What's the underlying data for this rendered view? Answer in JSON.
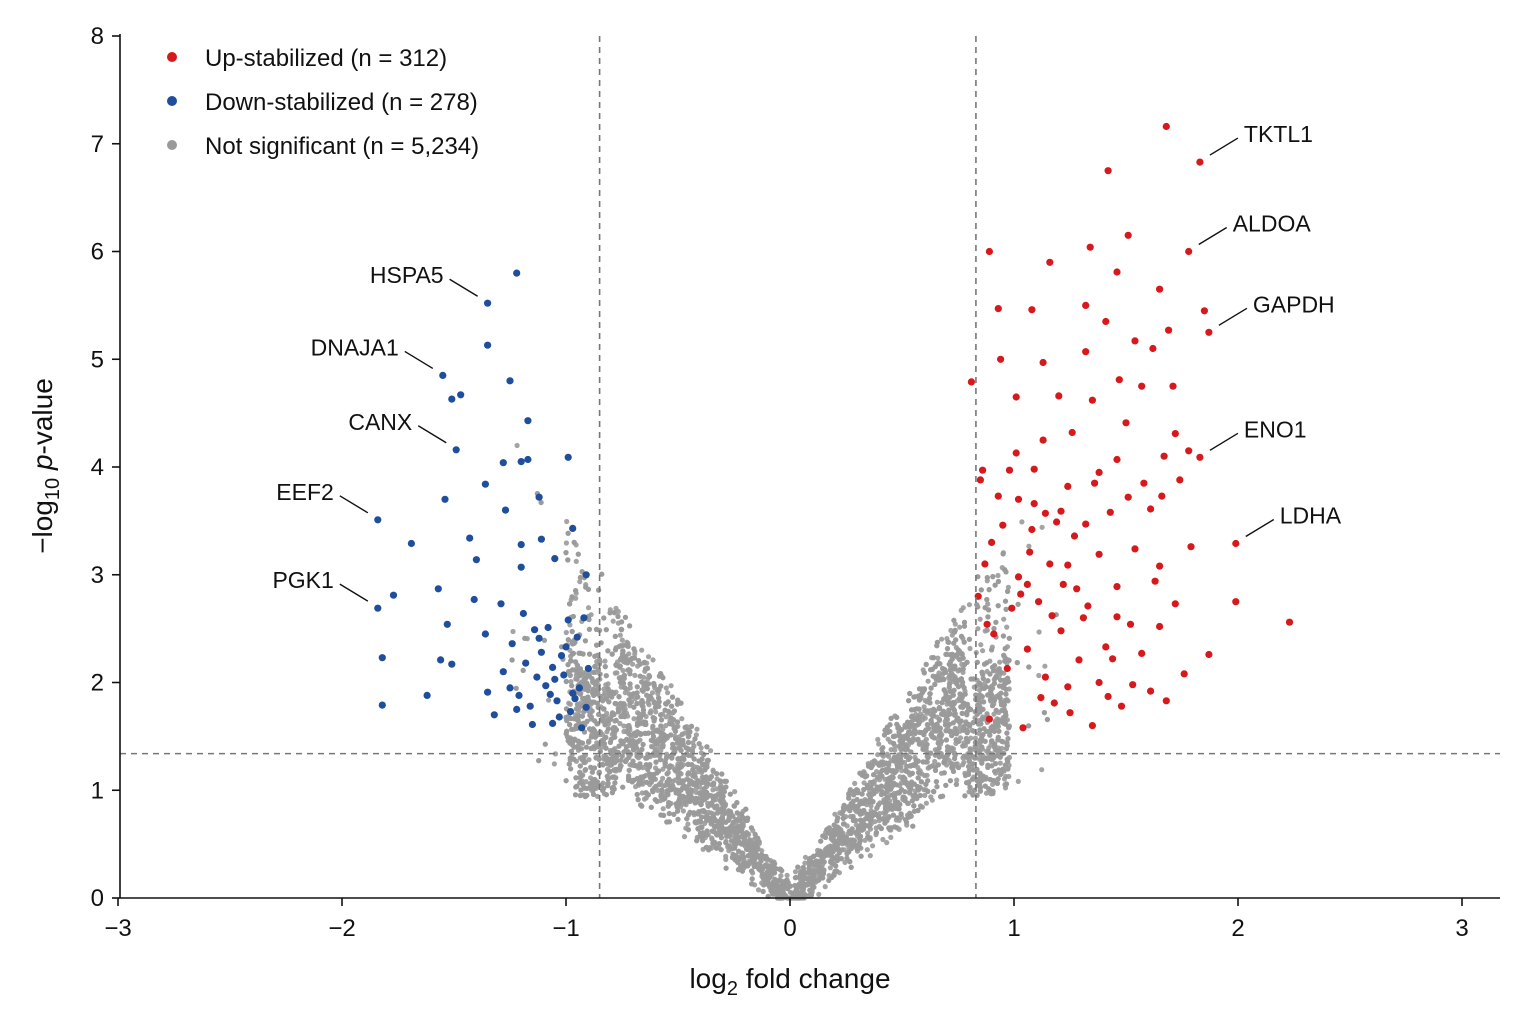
{
  "chart_data": {
    "type": "scatter",
    "title": "",
    "xlabel": {
      "prefix": "log",
      "sub": "2",
      "suffix": " fold change"
    },
    "ylabel": {
      "prefix": "−log",
      "sub": "10",
      "italic": "p",
      "suffix": "-value"
    },
    "xlim": [
      -3,
      3.1
    ],
    "ylim": [
      0,
      8
    ],
    "x_ticks": [
      -3,
      -2,
      -1,
      0,
      1,
      2,
      3
    ],
    "x_tick_labels": [
      "−3",
      "−2",
      "−1",
      "0",
      "1",
      "2",
      "3"
    ],
    "y_ticks": [
      0,
      1,
      2,
      3,
      4,
      5,
      6,
      7,
      8
    ],
    "y_tick_labels": [
      "0",
      "1",
      "2",
      "3",
      "4",
      "5",
      "6",
      "7",
      "8"
    ],
    "thresholds": {
      "x_left": -0.85,
      "x_right": 0.83,
      "y": 1.34
    },
    "grid": false,
    "legend_position": "top-left",
    "colors": {
      "up": "#d7191c",
      "down": "#1f4e9c",
      "ns": "#9a9a9a",
      "threshold_line": "#777777"
    },
    "legend": [
      {
        "key": "up",
        "label": "Up-stabilized (n = 312)"
      },
      {
        "key": "down",
        "label": "Down-stabilized (n = 278)"
      },
      {
        "key": "ns",
        "label": "Not significant (n = 5,234)"
      }
    ],
    "series": [
      {
        "key": "up",
        "name": "Up-stabilized (n = 312)",
        "points": [
          [
            1.68,
            7.16
          ],
          [
            1.83,
            6.83
          ],
          [
            1.42,
            6.75
          ],
          [
            1.78,
            6.0
          ],
          [
            1.51,
            6.15
          ],
          [
            1.34,
            6.04
          ],
          [
            0.89,
            6.0
          ],
          [
            1.16,
            5.9
          ],
          [
            1.46,
            5.81
          ],
          [
            1.65,
            5.65
          ],
          [
            0.93,
            5.47
          ],
          [
            1.08,
            5.46
          ],
          [
            1.32,
            5.5
          ],
          [
            1.85,
            5.45
          ],
          [
            1.41,
            5.35
          ],
          [
            1.69,
            5.27
          ],
          [
            1.87,
            5.25
          ],
          [
            1.54,
            5.17
          ],
          [
            1.62,
            5.1
          ],
          [
            1.32,
            5.07
          ],
          [
            1.13,
            4.97
          ],
          [
            0.94,
            5.0
          ],
          [
            1.47,
            4.81
          ],
          [
            1.57,
            4.75
          ],
          [
            1.71,
            4.75
          ],
          [
            0.81,
            4.79
          ],
          [
            1.01,
            4.65
          ],
          [
            1.2,
            4.66
          ],
          [
            1.35,
            4.62
          ],
          [
            1.5,
            4.41
          ],
          [
            1.72,
            4.31
          ],
          [
            1.26,
            4.32
          ],
          [
            1.13,
            4.25
          ],
          [
            1.01,
            4.13
          ],
          [
            1.78,
            4.15
          ],
          [
            1.83,
            4.09
          ],
          [
            1.67,
            4.1
          ],
          [
            1.46,
            4.07
          ],
          [
            0.86,
            3.97
          ],
          [
            1.09,
            3.98
          ],
          [
            1.38,
            3.95
          ],
          [
            1.58,
            3.85
          ],
          [
            1.74,
            3.88
          ],
          [
            1.24,
            3.82
          ],
          [
            0.93,
            3.73
          ],
          [
            1.02,
            3.7
          ],
          [
            1.51,
            3.72
          ],
          [
            1.66,
            3.73
          ],
          [
            1.61,
            3.61
          ],
          [
            1.43,
            3.58
          ],
          [
            1.19,
            3.49
          ],
          [
            1.32,
            3.47
          ],
          [
            0.95,
            3.46
          ],
          [
            1.08,
            3.42
          ],
          [
            1.99,
            3.29
          ],
          [
            1.79,
            3.26
          ],
          [
            1.54,
            3.24
          ],
          [
            1.38,
            3.19
          ],
          [
            1.65,
            3.08
          ],
          [
            1.24,
            3.09
          ],
          [
            1.16,
            3.1
          ],
          [
            0.87,
            3.1
          ],
          [
            1.28,
            2.87
          ],
          [
            1.63,
            2.94
          ],
          [
            1.46,
            2.89
          ],
          [
            1.03,
            2.82
          ],
          [
            1.11,
            2.75
          ],
          [
            1.99,
            2.75
          ],
          [
            1.72,
            2.73
          ],
          [
            1.52,
            2.54
          ],
          [
            2.23,
            2.56
          ],
          [
            1.65,
            2.52
          ],
          [
            1.87,
            2.26
          ],
          [
            1.76,
            2.08
          ],
          [
            1.38,
            2.0
          ],
          [
            1.61,
            1.92
          ],
          [
            1.48,
            1.78
          ],
          [
            1.68,
            1.83
          ],
          [
            1.25,
            1.72
          ],
          [
            1.12,
            1.86
          ],
          [
            1.42,
            1.87
          ],
          [
            1.53,
            1.98
          ],
          [
            1.35,
            1.6
          ],
          [
            1.04,
            1.58
          ],
          [
            0.89,
            1.66
          ],
          [
            1.18,
            1.81
          ],
          [
            1.24,
            1.96
          ],
          [
            0.84,
            2.8
          ],
          [
            0.91,
            2.45
          ],
          [
            0.97,
            2.13
          ],
          [
            1.06,
            2.31
          ],
          [
            1.14,
            2.05
          ],
          [
            1.21,
            2.48
          ],
          [
            1.29,
            2.21
          ],
          [
            1.33,
            2.71
          ],
          [
            1.41,
            2.33
          ],
          [
            1.46,
            2.61
          ],
          [
            1.57,
            2.27
          ],
          [
            1.27,
            3.36
          ],
          [
            0.99,
            2.69
          ],
          [
            1.06,
            2.91
          ],
          [
            1.17,
            2.62
          ],
          [
            1.22,
            2.91
          ],
          [
            0.9,
            3.3
          ],
          [
            1.07,
            3.21
          ],
          [
            1.14,
            3.57
          ],
          [
            1.31,
            2.6
          ],
          [
            1.36,
            3.85
          ],
          [
            0.85,
            3.88
          ],
          [
            0.98,
            3.97
          ],
          [
            1.09,
            3.66
          ],
          [
            1.21,
            3.59
          ],
          [
            1.02,
            2.98
          ],
          [
            1.44,
            2.22
          ],
          [
            0.88,
            2.54
          ]
        ]
      },
      {
        "key": "down",
        "name": "Down-stabilized (n = 278)",
        "points": [
          [
            -1.22,
            5.8
          ],
          [
            -1.35,
            5.52
          ],
          [
            -1.35,
            5.13
          ],
          [
            -1.55,
            4.85
          ],
          [
            -1.25,
            4.8
          ],
          [
            -1.47,
            4.67
          ],
          [
            -1.51,
            4.63
          ],
          [
            -1.17,
            4.43
          ],
          [
            -1.49,
            4.16
          ],
          [
            -0.99,
            4.09
          ],
          [
            -1.17,
            4.07
          ],
          [
            -1.2,
            4.05
          ],
          [
            -1.28,
            4.04
          ],
          [
            -1.36,
            3.84
          ],
          [
            -1.12,
            3.72
          ],
          [
            -1.54,
            3.7
          ],
          [
            -1.84,
            3.51
          ],
          [
            -1.27,
            3.6
          ],
          [
            -0.97,
            3.43
          ],
          [
            -1.43,
            3.34
          ],
          [
            -1.69,
            3.29
          ],
          [
            -1.11,
            3.33
          ],
          [
            -1.2,
            3.28
          ],
          [
            -1.4,
            3.14
          ],
          [
            -1.05,
            3.15
          ],
          [
            -0.91,
            3.0
          ],
          [
            -1.2,
            3.07
          ],
          [
            -1.57,
            2.87
          ],
          [
            -1.77,
            2.81
          ],
          [
            -1.41,
            2.77
          ],
          [
            -1.84,
            2.69
          ],
          [
            -1.29,
            2.73
          ],
          [
            -1.19,
            2.64
          ],
          [
            -1.53,
            2.54
          ],
          [
            -1.82,
            2.23
          ],
          [
            -1.36,
            2.45
          ],
          [
            -1.12,
            2.41
          ],
          [
            -1.56,
            2.21
          ],
          [
            -1.51,
            2.17
          ],
          [
            -1.62,
            1.88
          ],
          [
            -1.35,
            1.91
          ],
          [
            -1.82,
            1.79
          ],
          [
            -1.32,
            1.7
          ],
          [
            -1.22,
            1.75
          ],
          [
            -1.06,
            1.62
          ],
          [
            -1.15,
            1.61
          ],
          [
            -0.93,
            1.58
          ],
          [
            -1.04,
            1.83
          ],
          [
            -0.98,
            1.73
          ],
          [
            -1.09,
            1.97
          ],
          [
            -0.94,
            1.95
          ],
          [
            -1.01,
            2.07
          ],
          [
            -0.96,
            1.85
          ],
          [
            -1.13,
            2.05
          ],
          [
            -0.9,
            2.13
          ],
          [
            -1.02,
            2.25
          ],
          [
            -1.07,
            1.89
          ],
          [
            -0.95,
            2.42
          ],
          [
            -1.11,
            2.28
          ],
          [
            -0.92,
            2.6
          ],
          [
            -1.16,
            1.78
          ],
          [
            -1.25,
            1.95
          ],
          [
            -1.03,
            1.68
          ],
          [
            -1.18,
            2.18
          ],
          [
            -0.99,
            2.58
          ],
          [
            -1.08,
            2.51
          ],
          [
            -1.24,
            2.36
          ],
          [
            -0.91,
            1.77
          ],
          [
            -1.05,
            2.03
          ],
          [
            -1.14,
            2.49
          ],
          [
            -1.28,
            2.1
          ],
          [
            -0.97,
            1.9
          ],
          [
            -1.21,
            1.88
          ],
          [
            -1.0,
            2.33
          ],
          [
            -1.06,
            2.14
          ]
        ]
      }
    ],
    "annotations": [
      {
        "label": "TKTL1",
        "series": "up",
        "x": 1.83,
        "y": 6.83
      },
      {
        "label": "ALDOA",
        "series": "up",
        "x": 1.78,
        "y": 6.0
      },
      {
        "label": "GAPDH",
        "series": "up",
        "x": 1.87,
        "y": 5.25
      },
      {
        "label": "ENO1",
        "series": "up",
        "x": 1.83,
        "y": 4.09
      },
      {
        "label": "LDHA",
        "series": "up",
        "x": 1.99,
        "y": 3.29
      },
      {
        "label": "HSPA5",
        "series": "down",
        "x": -1.35,
        "y": 5.52
      },
      {
        "label": "DNAJA1",
        "series": "down",
        "x": -1.55,
        "y": 4.85
      },
      {
        "label": "CANX",
        "series": "down",
        "x": -1.49,
        "y": 4.16
      },
      {
        "label": "EEF2",
        "series": "down",
        "x": -1.84,
        "y": 3.51
      },
      {
        "label": "PGK1",
        "series": "down",
        "x": -1.84,
        "y": 2.69
      }
    ],
    "background_distribution": {
      "series": "ns",
      "count": 5234
    }
  }
}
